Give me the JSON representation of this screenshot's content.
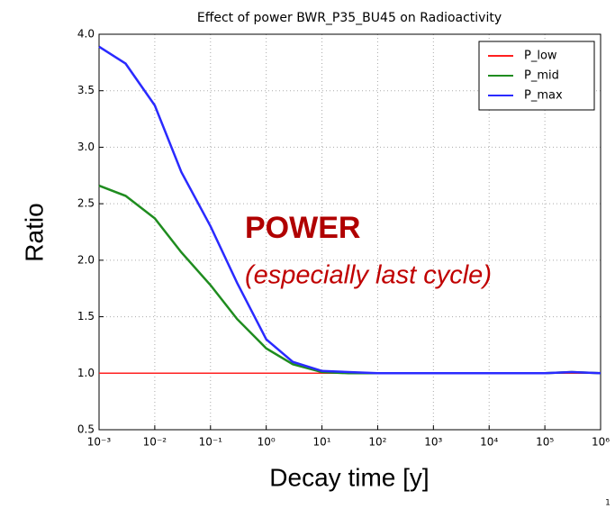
{
  "chart_data": {
    "type": "line",
    "title": "Effect of power BWR_P35_BU45 on Radioactivity",
    "x_label": "Decay time [y]",
    "y_label": "Ratio",
    "annotations": [
      "POWER",
      "(especially last cycle)"
    ],
    "x": [
      0.001,
      0.003,
      0.01,
      0.03,
      0.1,
      0.3,
      1,
      3,
      10,
      30,
      100,
      1000,
      10000,
      100000,
      300000,
      1000000
    ],
    "series": [
      {
        "name": "P_low",
        "color": "#ff2020",
        "values": [
          1.0,
          1.0,
          1.0,
          1.0,
          1.0,
          1.0,
          1.0,
          1.0,
          1.0,
          1.0,
          1.0,
          1.0,
          1.0,
          1.0,
          1.0,
          1.0
        ]
      },
      {
        "name": "P_mid",
        "color": "#1f8c1f",
        "values": [
          2.66,
          2.57,
          2.37,
          2.07,
          1.78,
          1.48,
          1.22,
          1.08,
          1.01,
          1.0,
          1.0,
          1.0,
          1.0,
          1.0,
          1.01,
          1.0
        ]
      },
      {
        "name": "P_max",
        "color": "#2a2aff",
        "values": [
          3.89,
          3.74,
          3.37,
          2.78,
          2.3,
          1.8,
          1.3,
          1.1,
          1.02,
          1.01,
          1.0,
          1.0,
          1.0,
          1.0,
          1.01,
          1.0
        ]
      }
    ],
    "xlog": true,
    "xlim": [
      0.001,
      1000000
    ],
    "xticks": [
      {
        "value": 0.001,
        "label": "10⁻³"
      },
      {
        "value": 0.01,
        "label": "10⁻²"
      },
      {
        "value": 0.1,
        "label": "10⁻¹"
      },
      {
        "value": 1,
        "label": "10⁰"
      },
      {
        "value": 10,
        "label": "10¹"
      },
      {
        "value": 100,
        "label": "10²"
      },
      {
        "value": 1000,
        "label": "10³"
      },
      {
        "value": 10000,
        "label": "10⁴"
      },
      {
        "value": 100000,
        "label": "10⁵"
      },
      {
        "value": 1000000,
        "label": "10⁶"
      }
    ],
    "ylim": [
      0.5,
      4.0
    ],
    "yticks": [
      0.5,
      {
        "value": 1.0,
        "label": "1.0"
      },
      1.5,
      {
        "value": 2.0,
        "label": "2.0"
      },
      2.5,
      {
        "value": 3.0,
        "label": "3.0"
      },
      3.5,
      {
        "value": 4.0,
        "label": "4.0"
      }
    ],
    "grid": true,
    "legend": "upper right"
  },
  "slide_number": "1"
}
